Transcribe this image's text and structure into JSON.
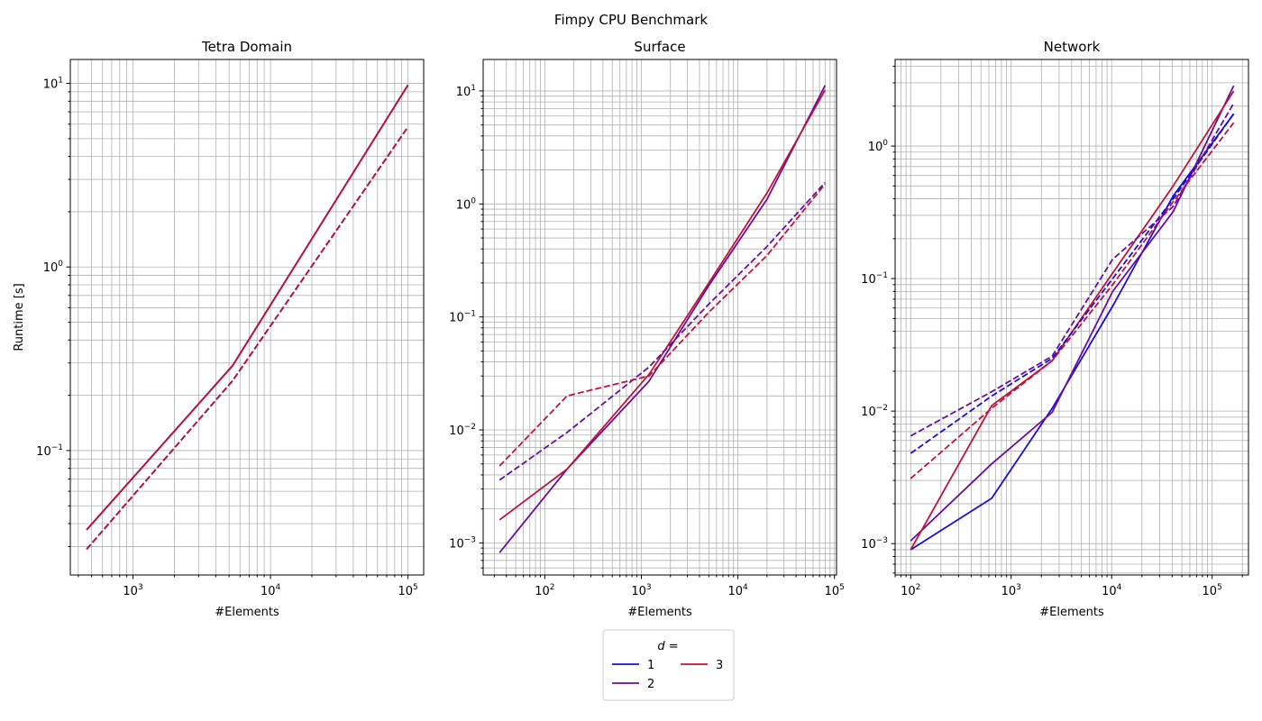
{
  "chart_data": {
    "title": "Fimpy CPU Benchmark",
    "colors": {
      "1": "#1a0ed6",
      "2": "#6a0d9e",
      "3": "#c0123a"
    },
    "legend": {
      "title_prefix": "d",
      "title_suffix": " =",
      "position": "bottom-center",
      "entries": [
        {
          "key": "1",
          "label": "1"
        },
        {
          "key": "2",
          "label": "2"
        },
        {
          "key": "3",
          "label": "3"
        }
      ]
    },
    "panels": [
      {
        "type": "line",
        "title": "Tetra Domain",
        "xlabel": "#Elements",
        "ylabel": "Runtime [s]",
        "xscale": "log",
        "yscale": "log",
        "grid": true,
        "xlim": [
          350,
          130000
        ],
        "ylim": [
          0.021,
          13.5
        ],
        "xticks": [
          {
            "v": 1000,
            "e": "3"
          },
          {
            "v": 10000,
            "e": "4"
          },
          {
            "v": 100000,
            "e": "5"
          }
        ],
        "yticks": [
          {
            "v": 0.1,
            "e": "−1"
          },
          {
            "v": 1,
            "e": "0"
          },
          {
            "v": 10,
            "e": "1"
          }
        ],
        "series": [
          {
            "d": "1",
            "style": "solid",
            "x": [
              460,
              5300,
              100000
            ],
            "y": [
              0.037,
              0.29,
              9.8
            ]
          },
          {
            "d": "2",
            "style": "solid",
            "x": [
              460,
              5300,
              100000
            ],
            "y": [
              0.037,
              0.29,
              9.8
            ]
          },
          {
            "d": "3",
            "style": "solid",
            "x": [
              460,
              5300,
              100000
            ],
            "y": [
              0.037,
              0.29,
              9.8
            ]
          },
          {
            "d": "1",
            "style": "dashed",
            "x": [
              460,
              5300,
              100000
            ],
            "y": [
              0.029,
              0.24,
              5.8
            ]
          },
          {
            "d": "2",
            "style": "dashed",
            "x": [
              460,
              5300,
              100000
            ],
            "y": [
              0.029,
              0.24,
              5.8
            ]
          },
          {
            "d": "3",
            "style": "dashed",
            "x": [
              460,
              5300,
              100000
            ],
            "y": [
              0.029,
              0.24,
              5.8
            ]
          }
        ]
      },
      {
        "type": "line",
        "title": "Surface",
        "xlabel": "#Elements",
        "ylabel": "",
        "xscale": "log",
        "yscale": "log",
        "grid": true,
        "xlim": [
          23,
          105000
        ],
        "ylim": [
          0.00052,
          19
        ],
        "xticks": [
          {
            "v": 100,
            "e": "2"
          },
          {
            "v": 1000,
            "e": "3"
          },
          {
            "v": 10000,
            "e": "4"
          },
          {
            "v": 100000,
            "e": "5"
          }
        ],
        "yticks": [
          {
            "v": 0.001,
            "e": "−3"
          },
          {
            "v": 0.01,
            "e": "−2"
          },
          {
            "v": 0.1,
            "e": "−1"
          },
          {
            "v": 1,
            "e": "0"
          },
          {
            "v": 10,
            "e": "1"
          }
        ],
        "series": [
          {
            "d": "2",
            "style": "solid",
            "x": [
              34,
              170,
              1200,
              5000,
              20000,
              80000
            ],
            "y": [
              0.00082,
              0.0045,
              0.027,
              0.19,
              1.1,
              11.2
            ]
          },
          {
            "d": "3",
            "style": "solid",
            "x": [
              34,
              170,
              1200,
              5000,
              20000,
              80000
            ],
            "y": [
              0.0016,
              0.0045,
              0.031,
              0.2,
              1.25,
              10.2
            ]
          },
          {
            "d": "2",
            "style": "dashed",
            "x": [
              34,
              170,
              1200,
              5000,
              20000,
              80000
            ],
            "y": [
              0.0036,
              0.0095,
              0.036,
              0.13,
              0.42,
              1.55
            ]
          },
          {
            "d": "3",
            "style": "dashed",
            "x": [
              34,
              170,
              1200,
              5000,
              20000,
              80000
            ],
            "y": [
              0.0048,
              0.02,
              0.03,
              0.11,
              0.35,
              1.5
            ]
          }
        ]
      },
      {
        "type": "line",
        "title": "Network",
        "xlabel": "#Elements",
        "ylabel": "",
        "xscale": "log",
        "yscale": "log",
        "grid": true,
        "xlim": [
          70,
          230000
        ],
        "ylim": [
          0.00058,
          4.5
        ],
        "xticks": [
          {
            "v": 100,
            "e": "2"
          },
          {
            "v": 1000,
            "e": "3"
          },
          {
            "v": 10000,
            "e": "4"
          },
          {
            "v": 100000,
            "e": "5"
          }
        ],
        "yticks": [
          {
            "v": 0.001,
            "e": "−3"
          },
          {
            "v": 0.01,
            "e": "−2"
          },
          {
            "v": 0.1,
            "e": "−1"
          },
          {
            "v": 1,
            "e": "0"
          }
        ],
        "series": [
          {
            "d": "1",
            "style": "solid",
            "x": [
              100,
              640,
              2560,
              10240,
              40960,
              163840
            ],
            "y": [
              0.0009,
              0.0022,
              0.0105,
              0.062,
              0.42,
              1.75
            ]
          },
          {
            "d": "2",
            "style": "solid",
            "x": [
              100,
              640,
              2560,
              10240,
              40960,
              163840
            ],
            "y": [
              0.00105,
              0.004,
              0.0098,
              0.08,
              0.32,
              2.85
            ]
          },
          {
            "d": "3",
            "style": "solid",
            "x": [
              100,
              640,
              2560,
              10240,
              40960,
              163840
            ],
            "y": [
              0.0009,
              0.011,
              0.024,
              0.11,
              0.5,
              2.6
            ]
          },
          {
            "d": "1",
            "style": "dashed",
            "x": [
              100,
              640,
              2560,
              10240,
              40960,
              163840
            ],
            "y": [
              0.0048,
              0.013,
              0.025,
              0.1,
              0.4,
              1.75
            ]
          },
          {
            "d": "2",
            "style": "dashed",
            "x": [
              100,
              640,
              2560,
              10240,
              40960,
              163840
            ],
            "y": [
              0.0065,
              0.014,
              0.026,
              0.14,
              0.35,
              2.1
            ]
          },
          {
            "d": "3",
            "style": "dashed",
            "x": [
              100,
              640,
              2560,
              10240,
              40960,
              163840
            ],
            "y": [
              0.0031,
              0.0105,
              0.024,
              0.09,
              0.38,
              1.5
            ]
          }
        ]
      }
    ]
  }
}
